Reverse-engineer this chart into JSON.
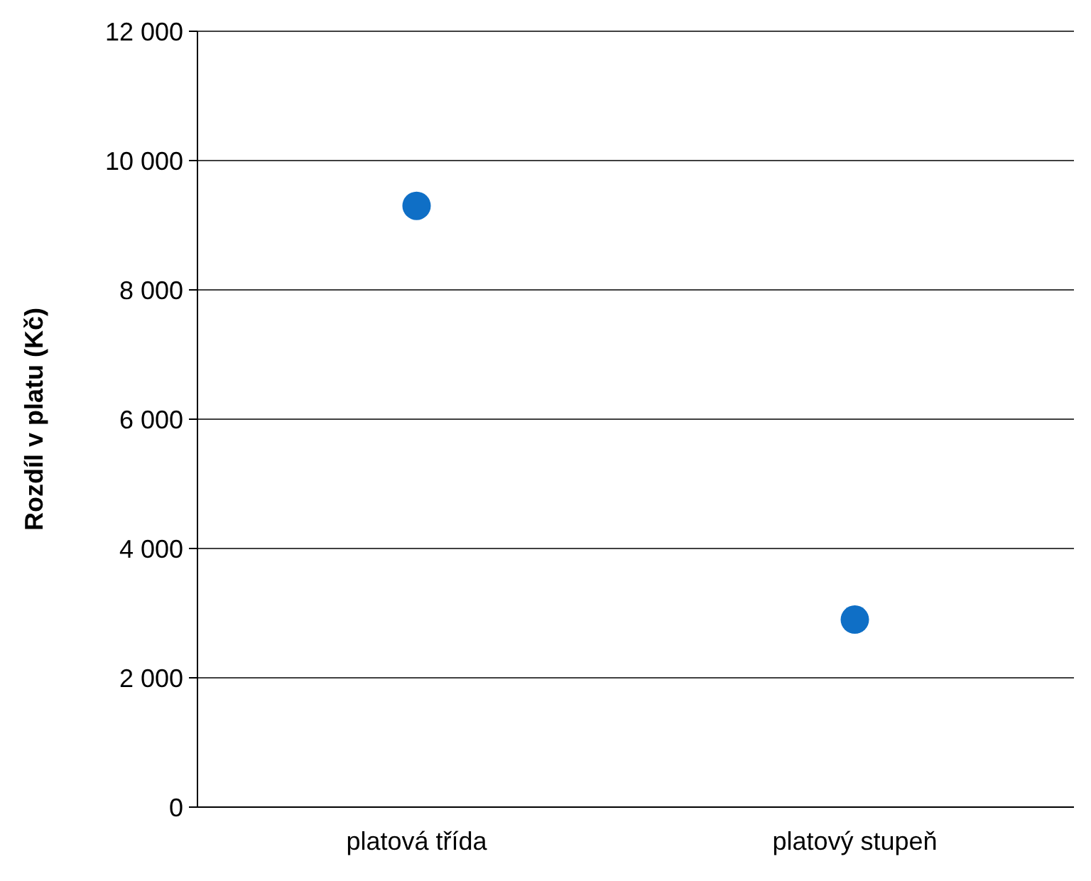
{
  "chart_data": {
    "type": "scatter",
    "ylabel": "Rozdíl v platu (Kč)",
    "categories": [
      "platová třída",
      "platový stupeň"
    ],
    "series": [
      {
        "color": "#0f6fc6",
        "values": [
          9300,
          2900
        ]
      }
    ],
    "ylim": [
      0,
      12000
    ],
    "yticks": [
      {
        "value": 0,
        "label": "0"
      },
      {
        "value": 2000,
        "label": "2 000"
      },
      {
        "value": 4000,
        "label": "4 000"
      },
      {
        "value": 6000,
        "label": "6 000"
      },
      {
        "value": 8000,
        "label": "8 000"
      },
      {
        "value": 10000,
        "label": "10 000"
      },
      {
        "value": 12000,
        "label": "12 000"
      }
    ],
    "grid": "y",
    "marker": "circle"
  }
}
